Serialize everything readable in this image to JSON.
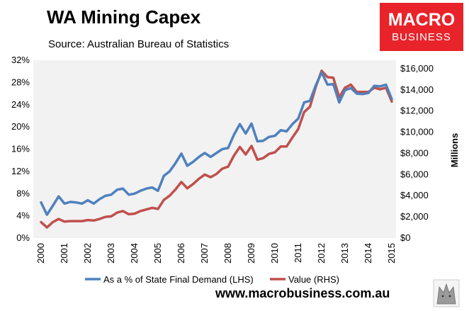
{
  "title": "WA Mining Capex",
  "subtitle": "Source: Australian Bureau of Statistics",
  "logo": {
    "line1": "MACRO",
    "line2": "BUSINESS",
    "bg_color": "#e8232a"
  },
  "website": "www.macrobusiness.com.au",
  "legend": {
    "lhs_label": "As a % of State Final Demand (LHS)",
    "rhs_label": "Value (RHS)"
  },
  "colors": {
    "lhs": "#4f81bd",
    "rhs": "#c0504d",
    "plot_bg": "#f2f2f2"
  },
  "chart_data": {
    "type": "line",
    "title": "WA Mining Capex",
    "subtitle": "Source: Australian Bureau of Statistics",
    "grid": false,
    "legend_position": "bottom",
    "x": [
      "2000Q1",
      "2000Q2",
      "2000Q3",
      "2000Q4",
      "2001Q1",
      "2001Q2",
      "2001Q3",
      "2001Q4",
      "2002Q1",
      "2002Q2",
      "2002Q3",
      "2002Q4",
      "2003Q1",
      "2003Q2",
      "2003Q3",
      "2003Q4",
      "2004Q1",
      "2004Q2",
      "2004Q3",
      "2004Q4",
      "2005Q1",
      "2005Q2",
      "2005Q3",
      "2005Q4",
      "2006Q1",
      "2006Q2",
      "2006Q3",
      "2006Q4",
      "2007Q1",
      "2007Q2",
      "2007Q3",
      "2007Q4",
      "2008Q1",
      "2008Q2",
      "2008Q3",
      "2008Q4",
      "2009Q1",
      "2009Q2",
      "2009Q3",
      "2009Q4",
      "2010Q1",
      "2010Q2",
      "2010Q3",
      "2010Q4",
      "2011Q1",
      "2011Q2",
      "2011Q3",
      "2011Q4",
      "2012Q1",
      "2012Q2",
      "2012Q3",
      "2012Q4",
      "2013Q1",
      "2013Q2",
      "2013Q3",
      "2013Q4",
      "2014Q1",
      "2014Q2",
      "2014Q3",
      "2014Q4",
      "2015Q1"
    ],
    "x_tick_labels": [
      "2000",
      "2001",
      "2002",
      "2003",
      "2004",
      "2005",
      "2006",
      "2007",
      "2008",
      "2009",
      "2010",
      "2011",
      "2012",
      "2013",
      "2014",
      "2015"
    ],
    "y_left": {
      "ticks": [
        "0%",
        "4%",
        "8%",
        "12%",
        "16%",
        "20%",
        "24%",
        "28%",
        "32%"
      ],
      "range": [
        0,
        32
      ],
      "unit": "%"
    },
    "y_right": {
      "ticks": [
        "$0",
        "$2,000",
        "$4,000",
        "$6,000",
        "$8,000",
        "$10,000",
        "$12,000",
        "$14,000",
        "$16,000"
      ],
      "range": [
        0,
        16800
      ],
      "label": "Millions"
    },
    "series": [
      {
        "name": "As a % of State Final Demand (LHS)",
        "axis": "left",
        "color": "#4f81bd",
        "values": [
          6.4,
          4.2,
          5.8,
          7.5,
          6.2,
          6.5,
          6.4,
          6.2,
          6.8,
          6.2,
          7.0,
          7.6,
          7.8,
          8.7,
          8.9,
          7.8,
          8.0,
          8.5,
          8.9,
          9.1,
          8.5,
          11.2,
          12.0,
          13.5,
          15.2,
          13.0,
          13.7,
          14.6,
          15.3,
          14.6,
          15.3,
          16.0,
          16.2,
          18.6,
          20.5,
          18.8,
          20.6,
          17.4,
          17.5,
          18.2,
          18.4,
          19.4,
          19.2,
          20.5,
          21.5,
          24.4,
          24.7,
          27.5,
          29.8,
          27.6,
          27.7,
          24.4,
          26.6,
          27.0,
          26.0,
          25.9,
          26.1,
          27.4,
          27.3,
          27.6,
          25.0
        ]
      },
      {
        "name": "Value (RHS)",
        "axis": "right",
        "color": "#c0504d",
        "values": [
          1500,
          1000,
          1500,
          1800,
          1550,
          1600,
          1600,
          1600,
          1700,
          1650,
          1800,
          2000,
          2050,
          2400,
          2550,
          2250,
          2300,
          2550,
          2700,
          2850,
          2750,
          3600,
          4000,
          4600,
          5300,
          4700,
          5100,
          5600,
          6000,
          5750,
          6050,
          6550,
          6750,
          7800,
          8600,
          7900,
          8700,
          7400,
          7550,
          7950,
          8100,
          8650,
          8650,
          9500,
          10300,
          11900,
          12400,
          14300,
          15800,
          15200,
          15150,
          13300,
          14200,
          14500,
          13800,
          13800,
          13800,
          14200,
          14050,
          14200,
          12900
        ]
      }
    ]
  }
}
